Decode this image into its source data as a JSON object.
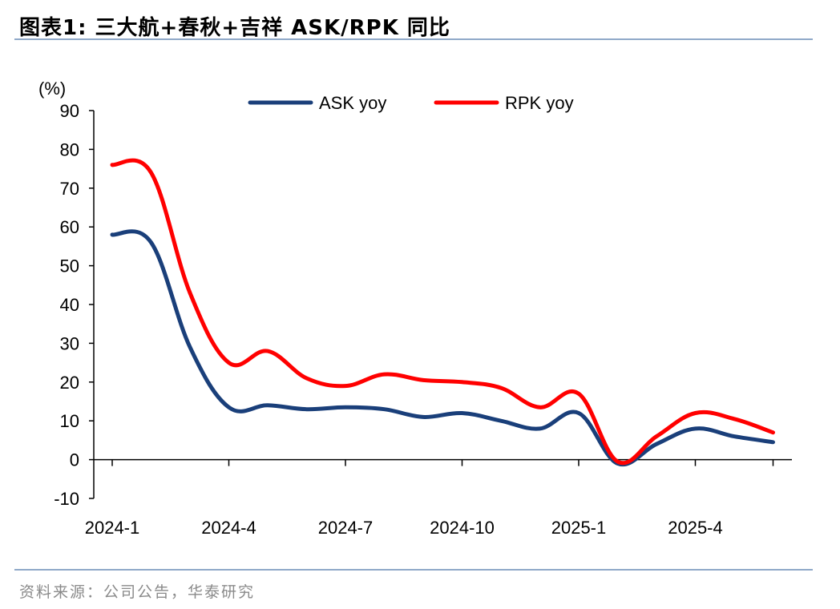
{
  "figure": {
    "title": "图表1:   三大航+春秋+吉祥 ASK/RPK 同比",
    "source": "资料来源：公司公告，华泰研究"
  },
  "chart_data": {
    "type": "line",
    "unit_label": "(%)",
    "ylim": [
      -10,
      90
    ],
    "yticks": [
      90,
      80,
      70,
      60,
      50,
      40,
      30,
      20,
      10,
      0,
      -10
    ],
    "x_tick_labels": [
      "2024-1",
      "2024-4",
      "2024-7",
      "2024-10",
      "2025-1",
      "2025-4"
    ],
    "x": [
      "2024-1",
      "2024-2",
      "2024-3",
      "2024-4",
      "2024-5",
      "2024-6",
      "2024-7",
      "2024-8",
      "2024-9",
      "2024-10",
      "2024-11",
      "2024-12",
      "2025-1",
      "2025-2",
      "2025-3",
      "2025-4",
      "2025-5",
      "2025-6"
    ],
    "legend_position": "top",
    "grid": false,
    "series": [
      {
        "name": "ASK yoy",
        "color": "#1a3f7a",
        "values": [
          58,
          56,
          29,
          13.5,
          14,
          13,
          13.5,
          13,
          11,
          12,
          10,
          8,
          12,
          -1,
          4,
          8,
          6,
          4.5
        ]
      },
      {
        "name": "RPK yoy",
        "color": "#ff0000",
        "values": [
          76,
          74,
          43,
          25,
          28,
          21,
          19,
          22,
          20.5,
          20,
          18.5,
          13.5,
          17,
          -0.5,
          6,
          12,
          10.5,
          7
        ]
      }
    ]
  }
}
